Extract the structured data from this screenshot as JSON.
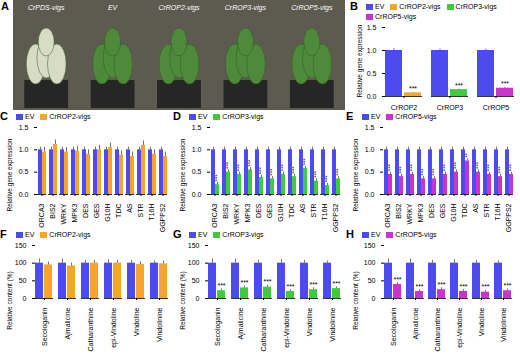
{
  "chart_data": [
    {
      "type": "image",
      "panel": "A",
      "labels": [
        "CrPDS-vigs",
        "EV",
        "CrROP2-vigs",
        "CrROP3-vigs",
        "CrROP5-vigs"
      ]
    },
    {
      "type": "bar",
      "panel": "B",
      "categories": [
        "CrROP2",
        "CrROP3",
        "CrROP5"
      ],
      "y_label": "Relative gene expression",
      "ylim": [
        0,
        1.5
      ],
      "yticks": [
        {
          "value": 0,
          "label": "0.0"
        },
        {
          "value": 0.5,
          "label": "0.5"
        },
        {
          "value": 1,
          "label": "1.0"
        },
        {
          "value": 1.5,
          "label": "1.5"
        }
      ],
      "legend": "top",
      "series": [
        {
          "name": "EV",
          "color": "#4b4bf0",
          "values": [
            1,
            1,
            1
          ],
          "errors": [
            0.04,
            0.03,
            0.03
          ]
        },
        {
          "name": "CrROP2-vigs",
          "color": "#f5a52a",
          "values": [
            0.08,
            null,
            null
          ],
          "errors": [
            0.01,
            null,
            null
          ],
          "significance": [
            "***",
            null,
            null
          ]
        },
        {
          "name": "CrROP3-vigs",
          "color": "#3dcc3d",
          "values": [
            null,
            0.15,
            null
          ],
          "errors": [
            null,
            0.01,
            null
          ],
          "significance": [
            null,
            "***",
            null
          ]
        },
        {
          "name": "CrROP5-vigs",
          "color": "#cc33cc",
          "values": [
            null,
            null,
            0.18
          ],
          "errors": [
            null,
            null,
            0.02
          ],
          "significance": [
            null,
            null,
            "***"
          ]
        }
      ]
    },
    {
      "type": "bar",
      "panel": "C",
      "categories": [
        "ORCA3",
        "BIS2",
        "WRKY",
        "MPK3",
        "DES",
        "GES",
        "G10H",
        "TDC",
        "AS",
        "STR",
        "T16H",
        "GGPPS2"
      ],
      "y_label": "Relative gene expression",
      "ylim": [
        0,
        1.5
      ],
      "yticks": [
        {
          "value": 0,
          "label": "0.0"
        },
        {
          "value": 0.5,
          "label": "0.5"
        },
        {
          "value": 1,
          "label": "1.0"
        },
        {
          "value": 1.5,
          "label": "1.5"
        }
      ],
      "legend": "top",
      "series": [
        {
          "name": "EV",
          "color": "#4b4bf0",
          "values": [
            1,
            1,
            1,
            1,
            1,
            1,
            1,
            1,
            1,
            1,
            1,
            1
          ],
          "errors": [
            0.06,
            0.06,
            0.06,
            0.06,
            0.06,
            0.06,
            0.06,
            0.06,
            0.06,
            0.06,
            0.06,
            0.06
          ]
        },
        {
          "name": "CrROP2-vigs",
          "color": "#f5a52a",
          "values": [
            0.95,
            1.12,
            0.95,
            0.97,
            0.9,
            1.0,
            1.05,
            0.88,
            0.85,
            1.1,
            0.9,
            0.85
          ],
          "errors": [
            0.1,
            0.1,
            0.1,
            0.1,
            0.1,
            0.1,
            0.1,
            0.1,
            0.1,
            0.1,
            0.1,
            0.1
          ]
        }
      ]
    },
    {
      "type": "bar",
      "panel": "D",
      "categories": [
        "ORCA3",
        "BIS2",
        "WRKY",
        "MPK3",
        "DES",
        "GES",
        "G10H",
        "TDC",
        "AS",
        "STR",
        "T16H",
        "GGPPS2"
      ],
      "y_label": "Relative gene expression",
      "ylim": [
        0,
        1.5
      ],
      "yticks": [
        {
          "value": 0,
          "label": "0.0"
        },
        {
          "value": 0.5,
          "label": "0.5"
        },
        {
          "value": 1,
          "label": "1.0"
        },
        {
          "value": 1.5,
          "label": "1.5"
        }
      ],
      "legend": "top",
      "series": [
        {
          "name": "EV",
          "color": "#4b4bf0",
          "values": [
            1,
            1,
            1,
            1,
            1,
            1,
            1,
            1,
            1,
            1,
            1,
            1
          ],
          "errors": [
            0.06,
            0.06,
            0.06,
            0.06,
            0.06,
            0.06,
            0.06,
            0.06,
            0.06,
            0.06,
            0.06,
            0.06
          ]
        },
        {
          "name": "CrROP3-vigs",
          "color": "#3dcc3d",
          "values": [
            0.22,
            0.5,
            0.45,
            0.55,
            0.38,
            0.35,
            0.45,
            0.4,
            0.58,
            0.3,
            0.2,
            0.35
          ],
          "errors": [
            0.05,
            0.05,
            0.05,
            0.05,
            0.05,
            0.05,
            0.05,
            0.05,
            0.05,
            0.05,
            0.05,
            0.05
          ],
          "significance": [
            "***",
            "***",
            "***",
            "***",
            "***",
            "***",
            "***",
            "***",
            "***",
            "***",
            "***",
            "***"
          ]
        }
      ]
    },
    {
      "type": "bar",
      "panel": "E",
      "categories": [
        "ORCA3",
        "BIS2",
        "WRKY",
        "MPK3",
        "DES",
        "GES",
        "G10H",
        "TDC",
        "AS",
        "STR",
        "T16H",
        "GGPPS2"
      ],
      "y_label": "Relative gene expression",
      "ylim": [
        0,
        1.5
      ],
      "yticks": [
        {
          "value": 0,
          "label": "0.0"
        },
        {
          "value": 0.5,
          "label": "0.5"
        },
        {
          "value": 1,
          "label": "1.0"
        },
        {
          "value": 1.5,
          "label": "1.5"
        }
      ],
      "legend": "top",
      "series": [
        {
          "name": "EV",
          "color": "#4b4bf0",
          "values": [
            1,
            1,
            1,
            1,
            1,
            1,
            1,
            1,
            1,
            1,
            1,
            1
          ],
          "errors": [
            0.06,
            0.06,
            0.06,
            0.06,
            0.06,
            0.06,
            0.06,
            0.06,
            0.06,
            0.06,
            0.06,
            0.06
          ]
        },
        {
          "name": "CrROP5-vigs",
          "color": "#cc33cc",
          "values": [
            0.45,
            0.4,
            0.45,
            0.35,
            0.35,
            0.45,
            0.5,
            0.75,
            0.5,
            0.45,
            0.4,
            0.45
          ],
          "errors": [
            0.05,
            0.05,
            0.05,
            0.05,
            0.05,
            0.05,
            0.05,
            0.05,
            0.05,
            0.05,
            0.05,
            0.05
          ],
          "significance": [
            "***",
            "***",
            "***",
            "***",
            "***",
            "***",
            "***",
            "**",
            "***",
            "***",
            "***",
            "***"
          ]
        }
      ]
    },
    {
      "type": "bar",
      "panel": "F",
      "categories": [
        "Secologanin",
        "Ajmalicine",
        "Catharanthine",
        "epi-Vindoline",
        "Vindoline",
        "Vindolinine"
      ],
      "y_label": "Relative content (%)",
      "ylim": [
        0,
        150
      ],
      "yticks": [
        0,
        50,
        100,
        150
      ],
      "legend": "top",
      "series": [
        {
          "name": "EV",
          "color": "#4b4bf0",
          "values": [
            100,
            100,
            100,
            100,
            100,
            100
          ],
          "errors": [
            12,
            12,
            8,
            10,
            8,
            6
          ]
        },
        {
          "name": "CrROP2-vigs",
          "color": "#f5a52a",
          "values": [
            95,
            92,
            100,
            100,
            96,
            98
          ],
          "errors": [
            8,
            8,
            8,
            8,
            8,
            8
          ]
        }
      ]
    },
    {
      "type": "bar",
      "panel": "G",
      "categories": [
        "Secologanin",
        "Ajmalicine",
        "Catharanthine",
        "epi-Vindoline",
        "Vindoline",
        "Vindolinine"
      ],
      "y_label": "Relative content (%)",
      "ylim": [
        0,
        150
      ],
      "yticks": [
        0,
        50,
        100,
        150
      ],
      "legend": "top",
      "series": [
        {
          "name": "EV",
          "color": "#4b4bf0",
          "values": [
            100,
            100,
            100,
            100,
            100,
            100
          ],
          "errors": [
            12,
            12,
            8,
            10,
            8,
            6
          ]
        },
        {
          "name": "CrROP3-vigs",
          "color": "#3dcc3d",
          "values": [
            22,
            30,
            32,
            20,
            25,
            28
          ],
          "errors": [
            5,
            5,
            5,
            5,
            5,
            5
          ],
          "significance": [
            "***",
            "***",
            "***",
            "***",
            "***",
            "***"
          ]
        }
      ]
    },
    {
      "type": "bar",
      "panel": "H",
      "categories": [
        "Secologanin",
        "Ajmalicine",
        "Catharanthine",
        "epi-Vindoline",
        "Vindoline",
        "Vindolinine"
      ],
      "y_label": "Relative content (%)",
      "ylim": [
        0,
        150
      ],
      "yticks": [
        0,
        50,
        100,
        150
      ],
      "legend": "top",
      "series": [
        {
          "name": "EV",
          "color": "#4b4bf0",
          "values": [
            100,
            100,
            100,
            100,
            100,
            100
          ],
          "errors": [
            12,
            12,
            8,
            10,
            8,
            6
          ]
        },
        {
          "name": "CrROP5-vigs",
          "color": "#cc33cc",
          "values": [
            40,
            20,
            25,
            20,
            18,
            22
          ],
          "errors": [
            5,
            5,
            5,
            5,
            5,
            5
          ],
          "significance": [
            "***",
            "***",
            "***",
            "***",
            "***",
            "***"
          ]
        }
      ]
    }
  ]
}
